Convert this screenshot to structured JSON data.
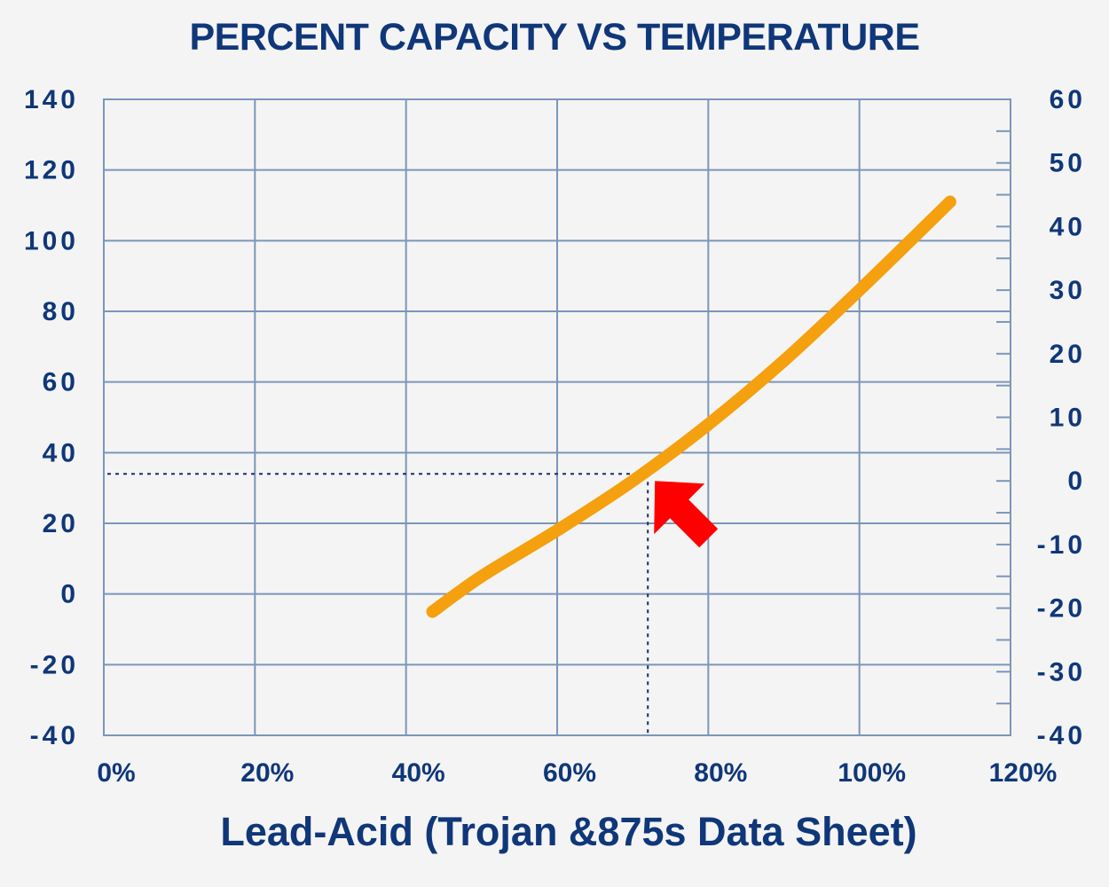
{
  "chart_data": {
    "type": "line",
    "title": "PERCENT CAPACITY VS TEMPERATURE",
    "xlabel": "Lead-Acid (Trojan &875s Data Sheet)",
    "ylabel": "",
    "y2label": "",
    "x_ticks": [
      "0%",
      "20%",
      "40%",
      "60%",
      "80%",
      "100%",
      "120%"
    ],
    "y_ticks": [
      "140",
      "120",
      "100",
      "80",
      "60",
      "40",
      "20",
      "0",
      "-20",
      "-40"
    ],
    "y2_ticks": [
      "60",
      "50",
      "40",
      "30",
      "20",
      "10",
      "0",
      "-10",
      "-20",
      "-30",
      "-40"
    ],
    "xlim": [
      0,
      120
    ],
    "ylim": [
      -40,
      140
    ],
    "y2lim": [
      -40,
      60
    ],
    "grid": true,
    "series": [
      {
        "color": "#f5a00f",
        "x": [
          43.5,
          50,
          60,
          70,
          80,
          90,
          100,
          112
        ],
        "y": [
          -5,
          5,
          18,
          32,
          48,
          66,
          86,
          111
        ]
      }
    ],
    "annotation": {
      "x": 72,
      "y": 34,
      "pointer_color": "#ff0000"
    }
  }
}
